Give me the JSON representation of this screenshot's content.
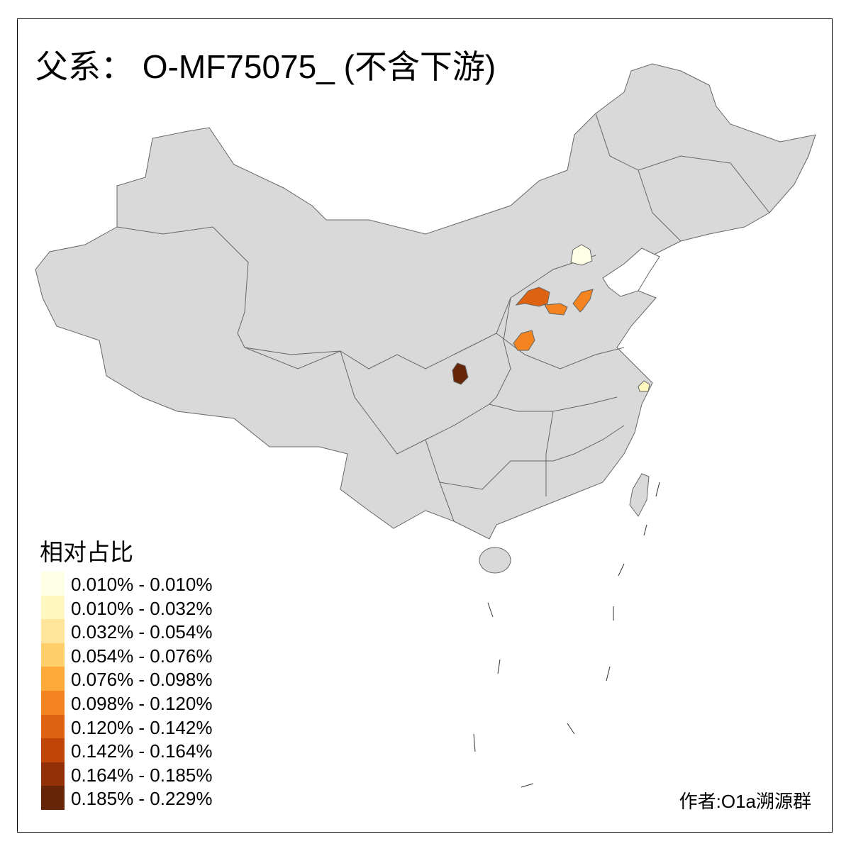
{
  "title": "父系： O-MF75075_ (不含下游)",
  "legend": {
    "title": "相对占比",
    "items": [
      {
        "label": "0.010% - 0.010%",
        "color": "#FFFFE5"
      },
      {
        "label": "0.010% - 0.032%",
        "color": "#FFF7C0"
      },
      {
        "label": "0.032% - 0.054%",
        "color": "#FEE599"
      },
      {
        "label": "0.054% - 0.076%",
        "color": "#FECF6A"
      },
      {
        "label": "0.076% - 0.098%",
        "color": "#FEAA3B"
      },
      {
        "label": "0.098% - 0.120%",
        "color": "#F3841F"
      },
      {
        "label": "0.120% - 0.142%",
        "color": "#DE6210"
      },
      {
        "label": "0.142% - 0.164%",
        "color": "#BF4607"
      },
      {
        "label": "0.164% - 0.185%",
        "color": "#923108"
      },
      {
        "label": "0.185% - 0.229%",
        "color": "#662506"
      }
    ]
  },
  "map": {
    "base_color": "#D9D9D9",
    "border_color": "#666666"
  },
  "credit": "作者:O1a溯源群"
}
